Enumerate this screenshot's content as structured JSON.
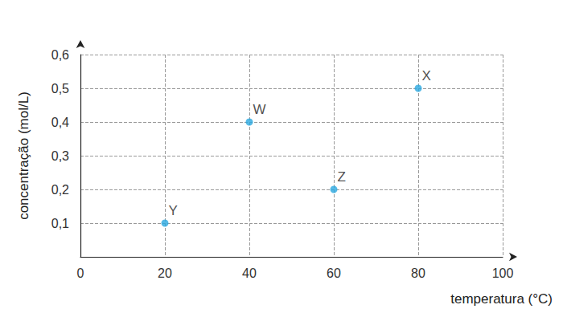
{
  "chart_data": {
    "type": "scatter",
    "x": [
      20,
      40,
      60,
      80
    ],
    "values": [
      0.1,
      0.4,
      0.2,
      0.5
    ],
    "labels": [
      "Y",
      "W",
      "Z",
      "X"
    ],
    "color": "#29a8e0",
    "marker": "circle",
    "xlabel": "temperatura (°C)",
    "ylabel": "concentração (mol/L)",
    "xlim": [
      0,
      100
    ],
    "ylim": [
      0,
      0.6
    ],
    "xticks": [
      0,
      20,
      40,
      60,
      80,
      100
    ],
    "yticks": [
      {
        "value": 0.1,
        "label": "0,1"
      },
      {
        "value": 0.2,
        "label": "0,2"
      },
      {
        "value": 0.3,
        "label": "0,3"
      },
      {
        "value": 0.4,
        "label": "0,4"
      },
      {
        "value": 0.5,
        "label": "0,5"
      },
      {
        "value": 0.6,
        "label": "0,6"
      }
    ],
    "grid": true
  }
}
